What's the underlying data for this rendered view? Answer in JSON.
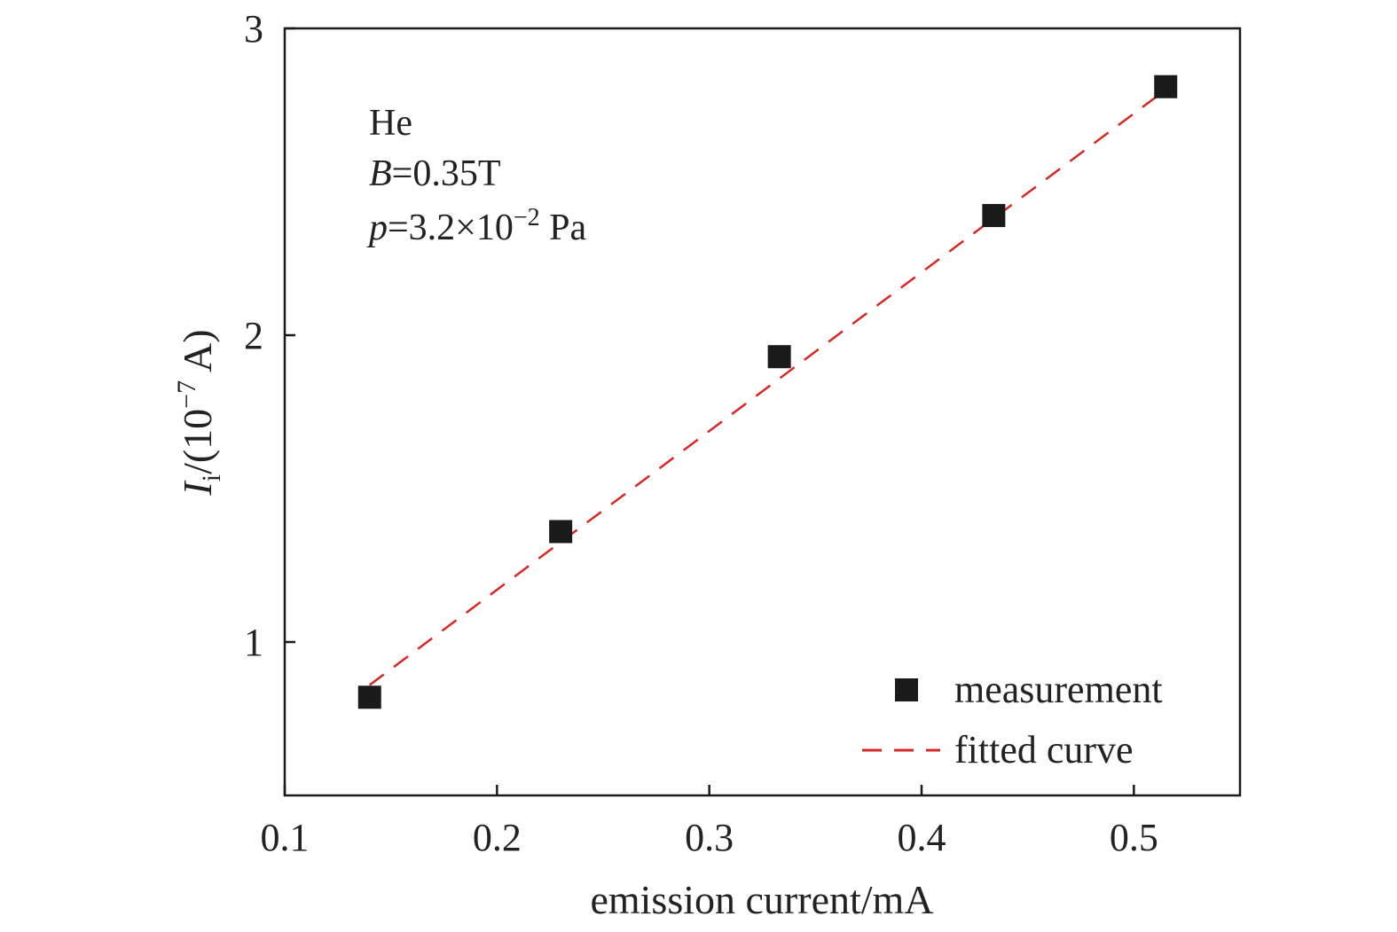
{
  "chart_data": {
    "type": "scatter",
    "xlabel": "emission current/mA",
    "ylabel": {
      "symbol": "I",
      "subscript": "i",
      "unit_prefix": "/(10",
      "exponent": "−7",
      "unit_suffix": " A)"
    },
    "xlim": [
      0.1,
      0.55
    ],
    "ylim": [
      0.5,
      3.0
    ],
    "xticks": [
      0.1,
      0.2,
      0.3,
      0.4,
      0.5
    ],
    "xtick_labels": [
      "0.1",
      "0.2",
      "0.3",
      "0.4",
      "0.5"
    ],
    "yticks": [
      1,
      2,
      3
    ],
    "ytick_labels": [
      "1",
      "2",
      "3"
    ],
    "grid": false,
    "legend_position": "bottom-right",
    "annotation": {
      "line1": "He",
      "line2_symbol": "B",
      "line2_rest": "=0.35T",
      "line3_symbol": "p",
      "line3_rest": "=3.2×10",
      "line3_exponent": "−2",
      "line3_unit": " Pa"
    },
    "series": [
      {
        "name": "measurement",
        "marker": "square",
        "color": "#1a1a1a",
        "x": [
          0.14,
          0.23,
          0.333,
          0.434,
          0.515
        ],
        "y": [
          0.82,
          1.36,
          1.93,
          2.39,
          2.81
        ]
      },
      {
        "name": "fitted curve",
        "line": "dashed",
        "color": "#d62728",
        "x": [
          0.14,
          0.515
        ],
        "y": [
          0.86,
          2.8
        ]
      }
    ]
  }
}
